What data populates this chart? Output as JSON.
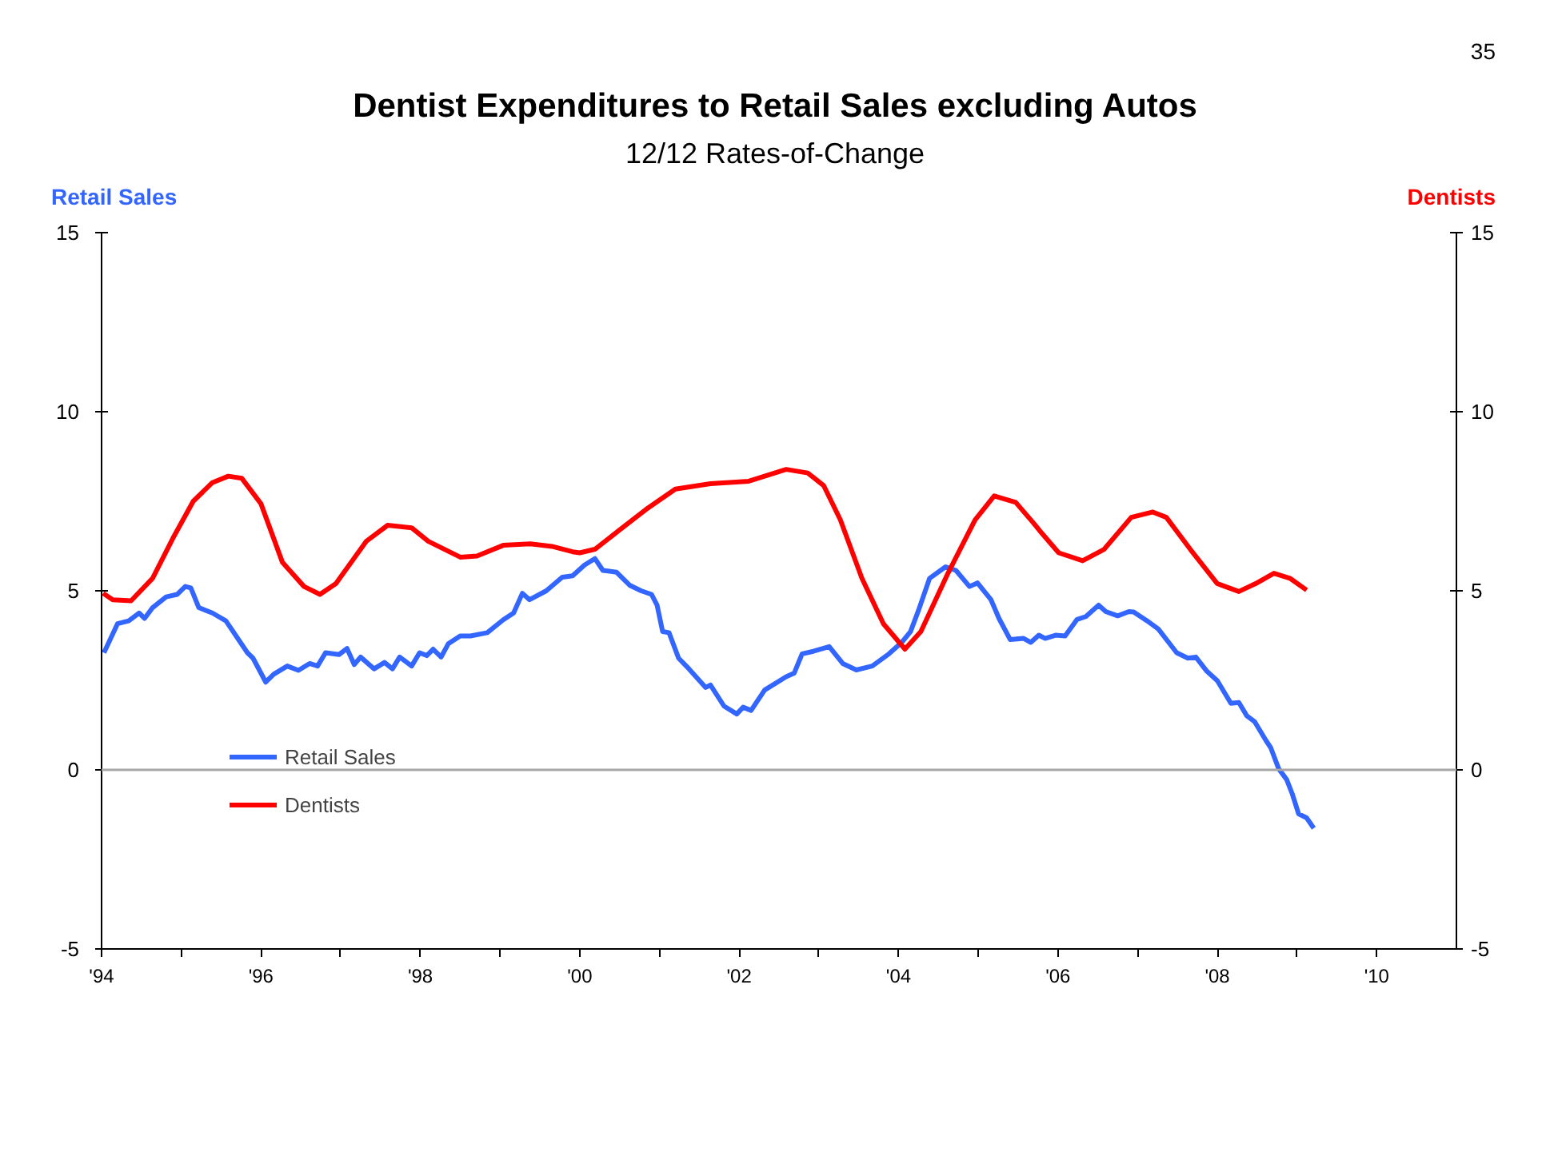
{
  "chart_data": {
    "type": "line",
    "title": "Dentist Expenditures to Retail Sales excluding Autos",
    "subtitle": "12/12 Rates-of-Change",
    "ylabel": "Retail Sales",
    "y2label": "Dentists",
    "annotations": [
      "35"
    ],
    "xlim": [
      1994,
      2011
    ],
    "xticks": [
      {
        "value": 1994,
        "label": "'94"
      },
      {
        "value": 1995,
        "label": null
      },
      {
        "value": 1996,
        "label": "'96"
      },
      {
        "value": 1997,
        "label": null
      },
      {
        "value": 1998,
        "label": "'98"
      },
      {
        "value": 1999,
        "label": null
      },
      {
        "value": 2000,
        "label": "'00"
      },
      {
        "value": 2001,
        "label": null
      },
      {
        "value": 2002,
        "label": "'02"
      },
      {
        "value": 2003,
        "label": null
      },
      {
        "value": 2004,
        "label": "'04"
      },
      {
        "value": 2005,
        "label": null
      },
      {
        "value": 2006,
        "label": "'06"
      },
      {
        "value": 2007,
        "label": null
      },
      {
        "value": 2008,
        "label": "'08"
      },
      {
        "value": 2009,
        "label": null
      },
      {
        "value": 2010,
        "label": "'10"
      }
    ],
    "ylim": [
      -5,
      15
    ],
    "yticks": [
      -5,
      0,
      5,
      10,
      15
    ],
    "y2lim": [
      -5,
      15
    ],
    "y2ticks": [
      -5,
      0,
      5,
      10,
      15
    ],
    "ref_lines": [
      {
        "axis": "y",
        "value": 0,
        "color": "#a6a6a6"
      }
    ],
    "grid": false,
    "legend": "bottom left",
    "line_style": "solid",
    "series": [
      {
        "name": "Retail Sales",
        "color": "#3366ff",
        "x": [
          1994.03,
          1994.2,
          1994.34,
          1994.47,
          1994.54,
          1994.64,
          1994.81,
          1994.95,
          1995.05,
          1995.12,
          1995.22,
          1995.39,
          1995.56,
          1995.83,
          1995.9,
          1996.06,
          1996.16,
          1996.33,
          1996.47,
          1996.61,
          1996.71,
          1996.81,
          1996.98,
          1997.08,
          1997.17,
          1997.25,
          1997.42,
          1997.55,
          1997.65,
          1997.74,
          1997.89,
          1997.99,
          1998.08,
          1998.16,
          1998.26,
          1998.35,
          1998.5,
          1998.63,
          1998.84,
          1999.04,
          1999.17,
          1999.28,
          1999.37,
          1999.58,
          1999.78,
          1999.91,
          2000.06,
          2000.19,
          2000.29,
          2000.46,
          2000.63,
          2000.77,
          2000.9,
          2000.97,
          2001.04,
          2001.12,
          2001.24,
          2001.37,
          2001.58,
          2001.64,
          2001.81,
          2001.97,
          2002.05,
          2002.15,
          2002.32,
          2002.59,
          2002.69,
          2002.79,
          2002.93,
          2003.13,
          2003.3,
          2003.47,
          2003.67,
          2003.88,
          2004.04,
          2004.15,
          2004.25,
          2004.39,
          2004.59,
          2004.72,
          2004.89,
          2004.99,
          2005.16,
          2005.26,
          2005.4,
          2005.57,
          2005.66,
          2005.76,
          2005.84,
          2005.97,
          2006.09,
          2006.24,
          2006.35,
          2006.51,
          2006.6,
          2006.75,
          2006.89,
          2006.95,
          2007.12,
          2007.26,
          2007.49,
          2007.63,
          2007.73,
          2007.87,
          2008.0,
          2008.17,
          2008.27,
          2008.37,
          2008.47,
          2008.61,
          2008.67,
          2008.77,
          2008.87,
          2008.94,
          2009.02,
          2009.12,
          2009.21
        ],
        "values": [
          3.27,
          4.08,
          4.16,
          4.38,
          4.23,
          4.53,
          4.83,
          4.9,
          5.12,
          5.08,
          4.53,
          4.38,
          4.16,
          3.27,
          3.12,
          2.45,
          2.67,
          2.9,
          2.78,
          2.97,
          2.9,
          3.27,
          3.22,
          3.39,
          2.94,
          3.15,
          2.82,
          3.0,
          2.82,
          3.15,
          2.9,
          3.27,
          3.19,
          3.37,
          3.15,
          3.52,
          3.74,
          3.74,
          3.83,
          4.19,
          4.38,
          4.93,
          4.75,
          5.0,
          5.38,
          5.42,
          5.72,
          5.9,
          5.57,
          5.52,
          5.15,
          5.0,
          4.9,
          4.6,
          3.86,
          3.83,
          3.12,
          2.82,
          2.3,
          2.37,
          1.78,
          1.56,
          1.75,
          1.66,
          2.23,
          2.6,
          2.7,
          3.24,
          3.31,
          3.44,
          2.97,
          2.79,
          2.9,
          3.24,
          3.56,
          3.86,
          4.45,
          5.35,
          5.67,
          5.57,
          5.12,
          5.22,
          4.75,
          4.23,
          3.64,
          3.67,
          3.56,
          3.76,
          3.67,
          3.76,
          3.74,
          4.2,
          4.28,
          4.6,
          4.42,
          4.3,
          4.42,
          4.41,
          4.16,
          3.93,
          3.27,
          3.12,
          3.15,
          2.75,
          2.49,
          1.86,
          1.88,
          1.51,
          1.34,
          0.82,
          0.62,
          0.03,
          -0.27,
          -0.67,
          -1.23,
          -1.34,
          -1.63
        ]
      },
      {
        "name": "Dentists",
        "color": "#ff0000",
        "axis": "y2",
        "x": [
          1994.02,
          1994.14,
          1994.37,
          1994.64,
          1994.91,
          1995.15,
          1995.39,
          1995.59,
          1995.76,
          1996.0,
          1996.27,
          1996.54,
          1996.74,
          1996.94,
          1997.32,
          1997.59,
          1997.89,
          1998.1,
          1998.5,
          1998.71,
          1999.04,
          1999.38,
          1999.65,
          1999.91,
          2000.0,
          2000.19,
          2000.49,
          2000.83,
          2001.2,
          2001.64,
          2002.12,
          2002.59,
          2002.86,
          2003.06,
          2003.27,
          2003.54,
          2003.81,
          2004.08,
          2004.28,
          2004.62,
          2004.96,
          2005.2,
          2005.47,
          2005.69,
          2005.77,
          2006.01,
          2006.31,
          2006.58,
          2006.92,
          2007.19,
          2007.36,
          2007.66,
          2008.0,
          2008.27,
          2008.48,
          2008.71,
          2008.91,
          2009.12
        ],
        "values": [
          4.93,
          4.75,
          4.72,
          5.35,
          6.53,
          7.5,
          8.02,
          8.2,
          8.14,
          7.43,
          5.79,
          5.12,
          4.9,
          5.2,
          6.38,
          6.83,
          6.76,
          6.38,
          5.94,
          5.97,
          6.27,
          6.31,
          6.24,
          6.09,
          6.06,
          6.16,
          6.68,
          7.27,
          7.84,
          7.99,
          8.06,
          8.39,
          8.29,
          7.94,
          6.98,
          5.35,
          4.08,
          3.37,
          3.86,
          5.49,
          6.98,
          7.65,
          7.47,
          6.9,
          6.68,
          6.06,
          5.84,
          6.16,
          7.05,
          7.2,
          7.05,
          6.16,
          5.2,
          4.98,
          5.2,
          5.49,
          5.35,
          5.02
        ]
      }
    ]
  }
}
